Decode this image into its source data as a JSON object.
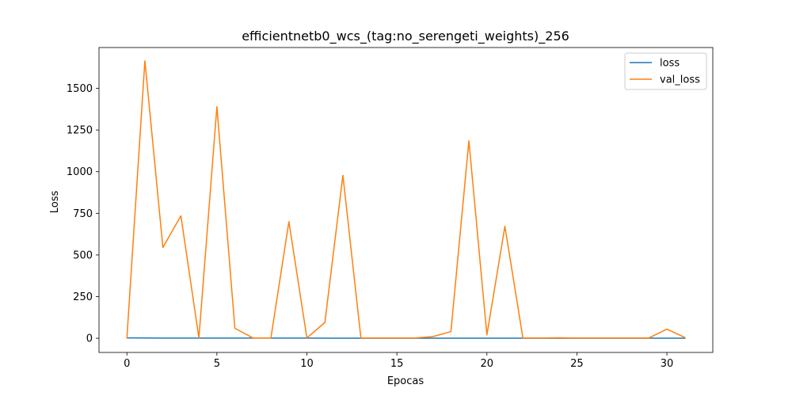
{
  "chart_data": {
    "type": "line",
    "title": "efficientnetb0_wcs_(tag:no_serengeti_weights)_256",
    "xlabel": "Epocas",
    "ylabel": "Loss",
    "xlim": [
      -1.55,
      32.55
    ],
    "ylim": [
      -85,
      1745
    ],
    "xticks": [
      0,
      5,
      10,
      15,
      20,
      25,
      30
    ],
    "yticks": [
      0,
      250,
      500,
      750,
      1000,
      1250,
      1500
    ],
    "legend_position": "upper right",
    "grid": false,
    "x": [
      0,
      1,
      2,
      3,
      4,
      5,
      6,
      7,
      8,
      9,
      10,
      11,
      12,
      13,
      14,
      15,
      16,
      17,
      18,
      19,
      20,
      21,
      22,
      23,
      24,
      25,
      26,
      27,
      28,
      29,
      30,
      31
    ],
    "series": [
      {
        "name": "loss",
        "color": "#1f77b4",
        "values": [
          2.1,
          1.6,
          1.4,
          1.3,
          1.2,
          1.1,
          1.0,
          1.0,
          0.9,
          0.9,
          0.9,
          0.8,
          0.8,
          0.8,
          0.8,
          0.7,
          0.7,
          0.7,
          0.7,
          0.7,
          0.6,
          0.6,
          0.6,
          0.6,
          0.6,
          0.6,
          0.5,
          0.5,
          0.5,
          0.5,
          0.5,
          0.5
        ]
      },
      {
        "name": "val_loss",
        "color": "#ff7f0e",
        "values": [
          2,
          1665,
          545,
          735,
          2,
          1390,
          60,
          2,
          2,
          700,
          2,
          95,
          978,
          2,
          2,
          2,
          2,
          10,
          40,
          1185,
          20,
          672,
          2,
          2,
          3,
          2,
          2,
          2,
          2,
          2,
          55,
          5
        ]
      }
    ]
  }
}
